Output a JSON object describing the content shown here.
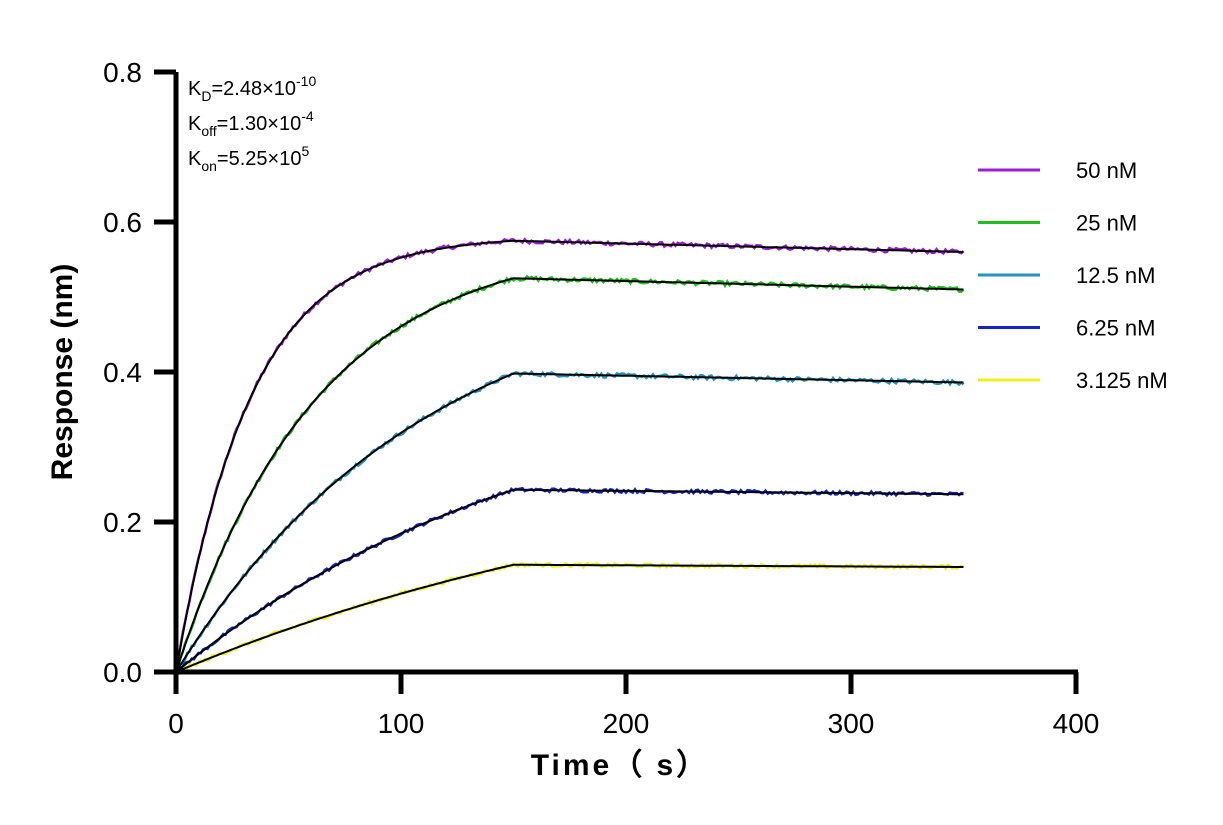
{
  "chart_data": {
    "type": "line",
    "xlabel": "Time（ s）",
    "ylabel": "Response (nm)",
    "xlim": [
      0,
      400
    ],
    "ylim": [
      0,
      0.8
    ],
    "x_ticks": [
      "0",
      "100",
      "200",
      "300",
      "400"
    ],
    "y_ticks": [
      "0.0",
      "0.2",
      "0.4",
      "0.6",
      "0.8"
    ],
    "grid": false,
    "legend_position": "right",
    "annotations": [
      {
        "main": "K",
        "sub": "D",
        "rest": "=2.48×10",
        "sup": "-10"
      },
      {
        "main": "K",
        "sub": "off",
        "rest": "=1.30×10",
        "sup": "-4"
      },
      {
        "main": "K",
        "sub": "on",
        "rest": "=5.25×10",
        "sup": "5"
      }
    ],
    "association_end_s": 150,
    "dissociation_end_s": 350,
    "series": [
      {
        "name": "50 nM",
        "color": "#9b1fd8",
        "association_end_value": 0.575,
        "final_value": 0.56
      },
      {
        "name": "25 nM",
        "color": "#1fbf1f",
        "association_end_value": 0.525,
        "final_value": 0.51
      },
      {
        "name": "12.5 nM",
        "color": "#2596b8",
        "association_end_value": 0.398,
        "final_value": 0.386
      },
      {
        "name": "6.25 nM",
        "color": "#1424c8",
        "association_end_value": 0.243,
        "final_value": 0.237
      },
      {
        "name": "3.125 nM",
        "color": "#f0f020",
        "association_end_value": 0.143,
        "final_value": 0.14
      }
    ],
    "fit_color": "#000000"
  }
}
